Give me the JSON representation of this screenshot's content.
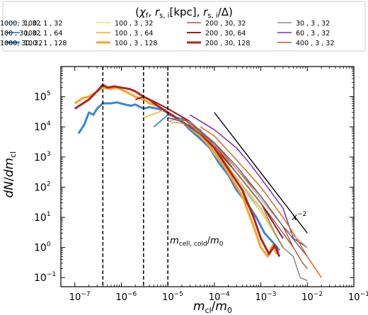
{
  "chart_data": {
    "type": "line",
    "xlabel": "m_cl/m_0",
    "ylabel": "dN/dm_cl",
    "x_scale": "log",
    "y_scale": "log",
    "xlim": [
      5e-08,
      0.1
    ],
    "ylim": [
      0.05,
      1000000
    ],
    "x_ticks": [
      {
        "v": 1e-07,
        "b": "10",
        "e": "−7"
      },
      {
        "v": 1e-06,
        "b": "10",
        "e": "−6"
      },
      {
        "v": 1e-05,
        "b": "10",
        "e": "−5"
      },
      {
        "v": 0.0001,
        "b": "10",
        "e": "−4"
      },
      {
        "v": 0.001,
        "b": "10",
        "e": "−3"
      },
      {
        "v": 0.01,
        "b": "10",
        "e": "−2"
      },
      {
        "v": 0.1,
        "b": "10",
        "e": "−1"
      }
    ],
    "y_ticks": [
      {
        "v": 0.1,
        "b": "10",
        "e": "−1"
      },
      {
        "v": 1,
        "b": "10",
        "e": "0"
      },
      {
        "v": 10,
        "b": "10",
        "e": "1"
      },
      {
        "v": 100,
        "b": "10",
        "e": "2"
      },
      {
        "v": 1000,
        "b": "10",
        "e": "3"
      },
      {
        "v": 10000,
        "b": "10",
        "e": "4"
      },
      {
        "v": 100000,
        "b": "10",
        "e": "5"
      }
    ],
    "legend": {
      "title": "(χ_f, r_s,i[kpc], r_s,i/Δ)",
      "placement": "top",
      "columns": 4
    },
    "vlines": [
      4e-07,
      3e-06,
      1e-05
    ],
    "vline_label": "m_cell,cold/m_0",
    "power_law": {
      "label": "x^−2",
      "x": [
        0.0001,
        0.01
      ],
      "y": [
        30000,
        3
      ]
    },
    "series": [
      {
        "name": "100 , 1 , 32",
        "color": "#7fb3e0",
        "width": 1.2,
        "x": [
          1e-05,
          2e-05,
          5e-05,
          0.0001,
          0.0003,
          0.001,
          0.003
        ],
        "y": [
          15000,
          20000,
          8000,
          1500,
          200,
          15,
          1
        ]
      },
      {
        "name": "100 , 1 , 64",
        "color": "#4a90d9",
        "width": 2,
        "x": [
          5e-06,
          1e-05,
          3e-05,
          0.0001,
          0.0003,
          0.001,
          0.003
        ],
        "y": [
          10000,
          25000,
          15000,
          2000,
          200,
          20,
          1
        ]
      },
      {
        "name": "100 , 1 , 128",
        "color": "#3a86d4",
        "width": 3,
        "x": [
          1.2e-07,
          1.6e-07,
          2e-07,
          2.5e-07,
          3e-07,
          4e-07,
          6e-07,
          8e-07,
          1.2e-06,
          1.6e-06,
          2e-06,
          3e-06,
          4e-06,
          6e-06,
          8e-06,
          1.2e-05,
          2e-05,
          3e-05,
          5e-05,
          8e-05,
          0.00012,
          0.0002,
          0.0003,
          0.0005,
          0.0008,
          0.0012,
          0.0018,
          0.0025
        ],
        "y": [
          6000,
          12000,
          30000,
          25000,
          40000,
          60000,
          60000,
          65000,
          55000,
          50000,
          55000,
          40000,
          45000,
          40000,
          35000,
          25000,
          15000,
          8000,
          4000,
          2000,
          700,
          250,
          80,
          30,
          10,
          3,
          1.5,
          0.8
        ]
      },
      {
        "name": "100 , 3 , 32",
        "color": "#f5d060",
        "width": 1.2,
        "x": [
          1e-05,
          2e-05,
          5e-05,
          0.0001,
          0.0003,
          0.001,
          0.003
        ],
        "y": [
          12000,
          15000,
          6000,
          1200,
          150,
          15,
          1
        ]
      },
      {
        "name": "100 , 3 , 64",
        "color": "#f6c04a",
        "width": 2,
        "x": [
          3e-06,
          1e-05,
          3e-05,
          0.0001,
          0.0003,
          0.001,
          0.003
        ],
        "y": [
          20000,
          40000,
          15000,
          2000,
          200,
          20,
          1
        ]
      },
      {
        "name": "100 , 3 , 128",
        "color": "#f5a623",
        "width": 3,
        "x": [
          1e-07,
          1.5e-07,
          2e-07,
          3e-07,
          4e-07,
          6e-07,
          8e-07,
          1.2e-06,
          1.6e-06,
          2e-06,
          3e-06,
          4e-06,
          6e-06,
          1e-05,
          2e-05,
          5e-05,
          0.0001,
          0.0002,
          0.0004,
          0.0007,
          0.001,
          0.0014,
          0.0018,
          0.0022
        ],
        "y": [
          60000,
          90000,
          100000,
          150000,
          200000,
          180000,
          200000,
          150000,
          120000,
          100000,
          80000,
          60000,
          50000,
          30000,
          15000,
          5000,
          1500,
          300,
          50,
          5,
          1,
          0.5,
          1.2,
          0.6
        ]
      },
      {
        "name": "200 , 30, 32",
        "color": "#a52a2a",
        "width": 1.2,
        "x": [
          2e-05,
          5e-05,
          0.0001,
          0.0003,
          0.001,
          0.003,
          0.005
        ],
        "y": [
          15000,
          8000,
          2000,
          300,
          30,
          3,
          1
        ]
      },
      {
        "name": "200 , 30, 64",
        "color": "#9c1c1c",
        "width": 2,
        "x": [
          2e-06,
          3e-06,
          5e-06,
          1e-05,
          3e-05,
          0.0001,
          0.0003,
          0.001,
          0.003
        ],
        "y": [
          80000,
          100000,
          70000,
          40000,
          15000,
          2500,
          300,
          30,
          2
        ]
      },
      {
        "name": "200 , 30, 128",
        "color": "#b22222",
        "width": 3,
        "x": [
          1e-07,
          1.5e-07,
          2e-07,
          3e-07,
          4e-07,
          5e-07,
          7e-07,
          1e-06,
          1.5e-06,
          2e-06,
          3e-06,
          4e-06,
          6e-06,
          1e-05,
          2e-05,
          5e-05,
          0.0001,
          0.0002,
          0.0004,
          0.0007,
          0.001,
          0.0015,
          0.002,
          0.0025
        ],
        "y": [
          40000,
          60000,
          80000,
          150000,
          250000,
          200000,
          220000,
          200000,
          180000,
          150000,
          100000,
          80000,
          50000,
          30000,
          15000,
          6000,
          2000,
          400,
          80,
          10,
          2,
          0.6,
          1.2,
          0.5
        ]
      },
      {
        "name": "30 , 3 , 32",
        "color": "#888888",
        "width": 1.5,
        "x": [
          1e-05,
          3e-05,
          0.0001,
          0.0003,
          0.001,
          0.002,
          0.003,
          0.005,
          0.007,
          0.01
        ],
        "y": [
          20000,
          15000,
          3000,
          300,
          30,
          3,
          1,
          0.5,
          0.1,
          0.08
        ]
      },
      {
        "name": "60 , 3 , 32",
        "color": "#7b2fbe",
        "width": 1.5,
        "x": [
          3e-05,
          0.0001,
          0.0003,
          0.0005,
          0.001,
          0.003,
          0.005,
          0.01
        ],
        "y": [
          25000,
          8000,
          2000,
          800,
          200,
          20,
          2,
          1
        ]
      },
      {
        "name": "400 , 3 , 32",
        "color": "#b05a40",
        "width": 1.5,
        "x": [
          2e-05,
          0.0001,
          0.0003,
          0.001,
          0.003,
          0.005,
          0.008,
          0.01
        ],
        "y": [
          20000,
          3000,
          400,
          50,
          5,
          1,
          0.3,
          0.2
        ]
      },
      {
        "name": "1000, 3 , 32",
        "color": "#e06a1a",
        "width": 1.5,
        "x": [
          5e-05,
          0.0001,
          0.0003,
          0.001,
          0.003,
          0.005,
          0.01,
          0.02
        ],
        "y": [
          10000,
          5000,
          800,
          100,
          10,
          3,
          0.5,
          0.1
        ]
      },
      {
        "name": "100 , 30, 32",
        "color": "#c8a070",
        "width": 1.2,
        "x": [
          1e-05,
          3e-05,
          0.0001,
          0.0003,
          0.001,
          0.003,
          0.01
        ],
        "y": [
          15000,
          12000,
          2500,
          400,
          40,
          5,
          1
        ]
      },
      {
        "name": "1000, 30, 32",
        "color": "#6a6a80",
        "width": 1.5,
        "x": [
          1e-05,
          2e-05,
          0.0001,
          0.0003,
          0.001,
          0.003,
          0.01
        ],
        "y": [
          20000,
          15000,
          3000,
          500,
          50,
          5,
          0.5
        ]
      }
    ]
  }
}
